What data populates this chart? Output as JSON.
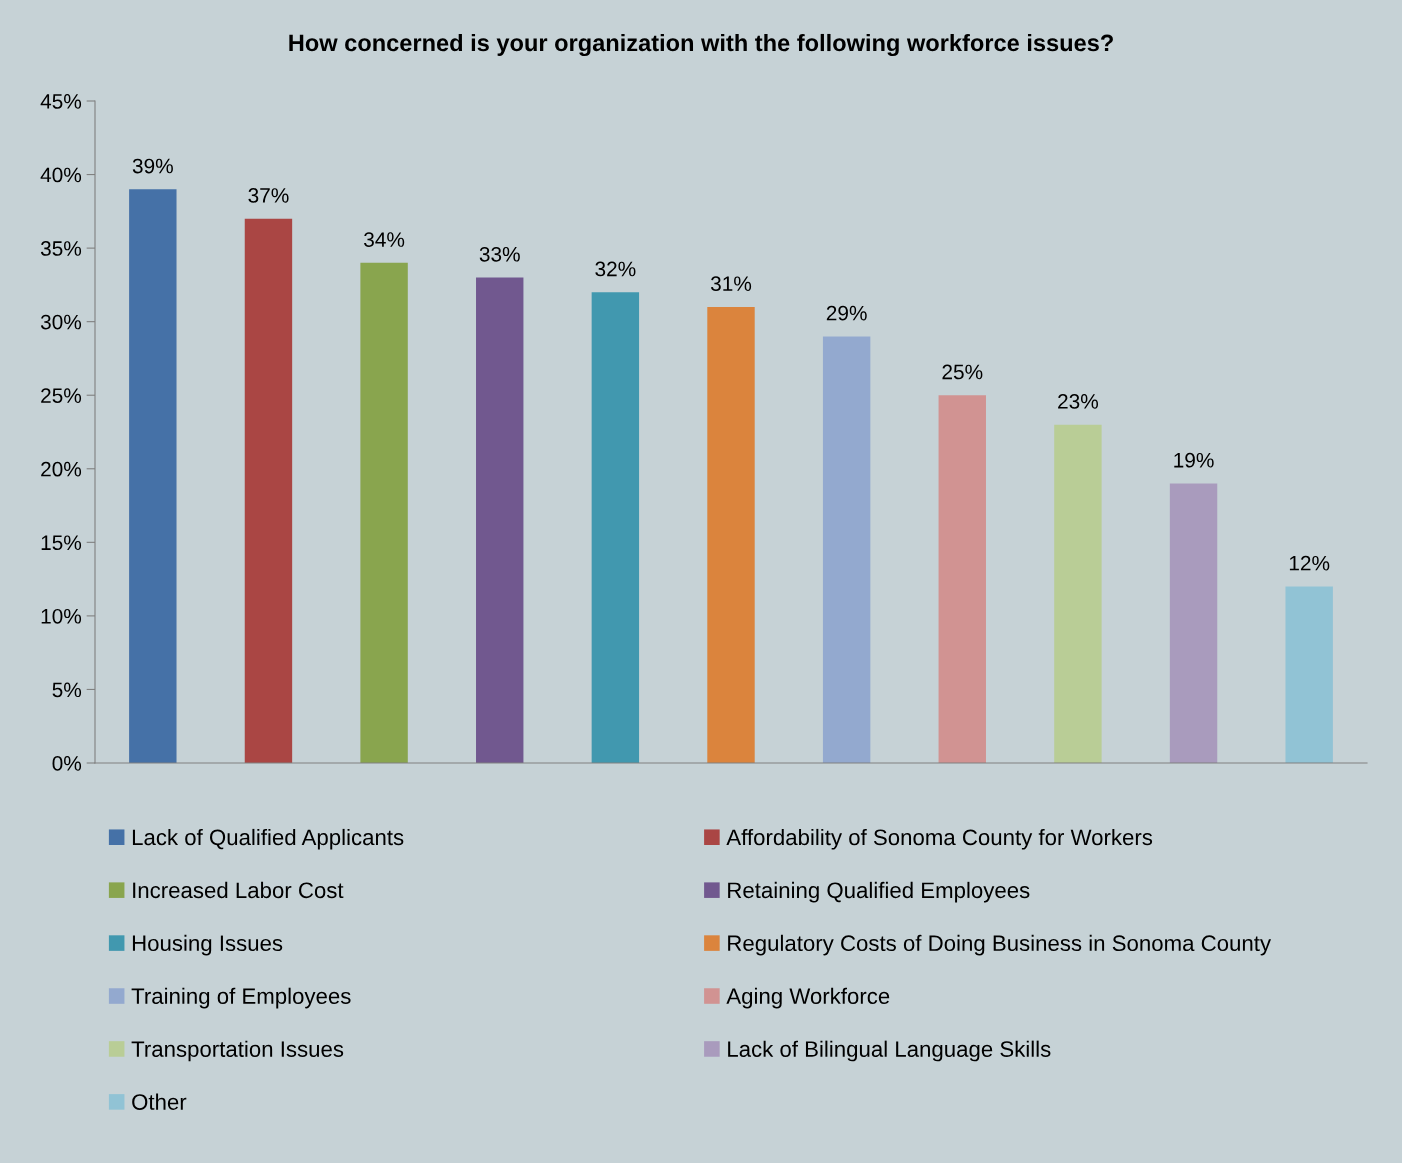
{
  "chart_data": {
    "type": "bar",
    "title": "How concerned is your organization with the following workforce issues?",
    "categories": [
      null,
      null,
      null,
      null,
      null,
      null,
      null,
      null,
      null,
      null,
      null
    ],
    "series": [
      {
        "name": "Lack of Qualified Applicants",
        "color": "#4571a7",
        "values": [
          39,
          null,
          null,
          null,
          null,
          null,
          null,
          null,
          null,
          null,
          null
        ],
        "value_labels": [
          "39%",
          null,
          null,
          null,
          null,
          null,
          null,
          null,
          null,
          null,
          null
        ]
      },
      {
        "name": "Affordability of Sonoma County for Workers",
        "color": "#aa4644",
        "values": [
          null,
          37,
          null,
          null,
          null,
          null,
          null,
          null,
          null,
          null,
          null
        ],
        "value_labels": [
          null,
          "37%",
          null,
          null,
          null,
          null,
          null,
          null,
          null,
          null,
          null
        ]
      },
      {
        "name": "Increased Labor Cost",
        "color": "#89a54e",
        "values": [
          null,
          null,
          34,
          null,
          null,
          null,
          null,
          null,
          null,
          null,
          null
        ],
        "value_labels": [
          null,
          null,
          "34%",
          null,
          null,
          null,
          null,
          null,
          null,
          null,
          null
        ]
      },
      {
        "name": "Retaining Qualified Employees",
        "color": "#71588f",
        "values": [
          null,
          null,
          null,
          33,
          null,
          null,
          null,
          null,
          null,
          null,
          null
        ],
        "value_labels": [
          null,
          null,
          null,
          "33%",
          null,
          null,
          null,
          null,
          null,
          null,
          null
        ]
      },
      {
        "name": "Housing Issues",
        "color": "#4198af",
        "values": [
          null,
          null,
          null,
          null,
          32,
          null,
          null,
          null,
          null,
          null,
          null
        ],
        "value_labels": [
          null,
          null,
          null,
          null,
          "32%",
          null,
          null,
          null,
          null,
          null,
          null
        ]
      },
      {
        "name": "Regulatory Costs of Doing Business in Sonoma County",
        "color": "#db843d",
        "values": [
          null,
          null,
          null,
          null,
          null,
          31,
          null,
          null,
          null,
          null,
          null
        ],
        "value_labels": [
          null,
          null,
          null,
          null,
          null,
          "31%",
          null,
          null,
          null,
          null,
          null
        ]
      },
      {
        "name": "Training of Employees",
        "color": "#93a9cf",
        "values": [
          null,
          null,
          null,
          null,
          null,
          null,
          29,
          null,
          null,
          null,
          null
        ],
        "value_labels": [
          null,
          null,
          null,
          null,
          null,
          null,
          "29%",
          null,
          null,
          null,
          null
        ]
      },
      {
        "name": "Aging Workforce",
        "color": "#d19392",
        "values": [
          null,
          null,
          null,
          null,
          null,
          null,
          null,
          25,
          null,
          null,
          null
        ],
        "value_labels": [
          null,
          null,
          null,
          null,
          null,
          null,
          null,
          "25%",
          null,
          null,
          null
        ]
      },
      {
        "name": "Transportation Issues",
        "color": "#b9cd96",
        "values": [
          null,
          null,
          null,
          null,
          null,
          null,
          null,
          null,
          23,
          null,
          null
        ],
        "value_labels": [
          null,
          null,
          null,
          null,
          null,
          null,
          null,
          null,
          "23%",
          null,
          null
        ]
      },
      {
        "name": "Lack of Bilingual Language Skills",
        "color": "#a99bbd",
        "values": [
          null,
          null,
          null,
          null,
          null,
          null,
          null,
          null,
          null,
          19,
          null
        ],
        "value_labels": [
          null,
          null,
          null,
          null,
          null,
          null,
          null,
          null,
          null,
          "19%",
          null
        ]
      },
      {
        "name": "Other",
        "color": "#91c3d5",
        "values": [
          null,
          null,
          null,
          null,
          null,
          null,
          null,
          null,
          null,
          null,
          12
        ],
        "value_labels": [
          null,
          null,
          null,
          null,
          null,
          null,
          null,
          null,
          null,
          null,
          "12%"
        ]
      }
    ],
    "ylim": [
      0,
      45
    ],
    "yticks": [
      {
        "value": 0,
        "label": "0%"
      },
      {
        "value": 5,
        "label": "5%"
      },
      {
        "value": 10,
        "label": "10%"
      },
      {
        "value": 15,
        "label": "15%"
      },
      {
        "value": 20,
        "label": "20%"
      },
      {
        "value": 25,
        "label": "25%"
      },
      {
        "value": 30,
        "label": "30%"
      },
      {
        "value": 35,
        "label": "35%"
      },
      {
        "value": 40,
        "label": "40%"
      },
      {
        "value": 45,
        "label": "45%"
      }
    ],
    "tick_labels": "y",
    "grid": false,
    "legend": "bottom"
  }
}
